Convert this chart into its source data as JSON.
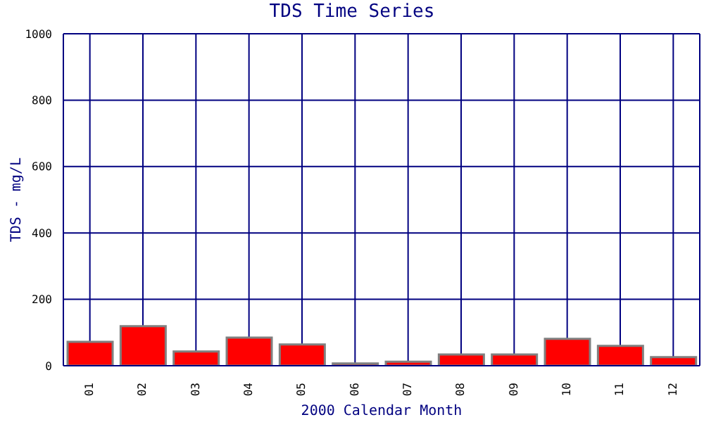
{
  "chart_data": {
    "type": "bar",
    "title": "TDS Time Series",
    "xlabel": "2000 Calendar Month",
    "ylabel": "TDS - mg/L",
    "categories": [
      "01",
      "02",
      "03",
      "04",
      "05",
      "06",
      "07",
      "08",
      "09",
      "10",
      "11",
      "12"
    ],
    "values": [
      72,
      119,
      43,
      85,
      64,
      7,
      12,
      34,
      34,
      81,
      60,
      26
    ],
    "color": "#ff0000",
    "ylim": [
      0,
      1000
    ],
    "yticks": [
      0,
      200,
      400,
      600,
      800,
      1000
    ],
    "grid": true
  }
}
